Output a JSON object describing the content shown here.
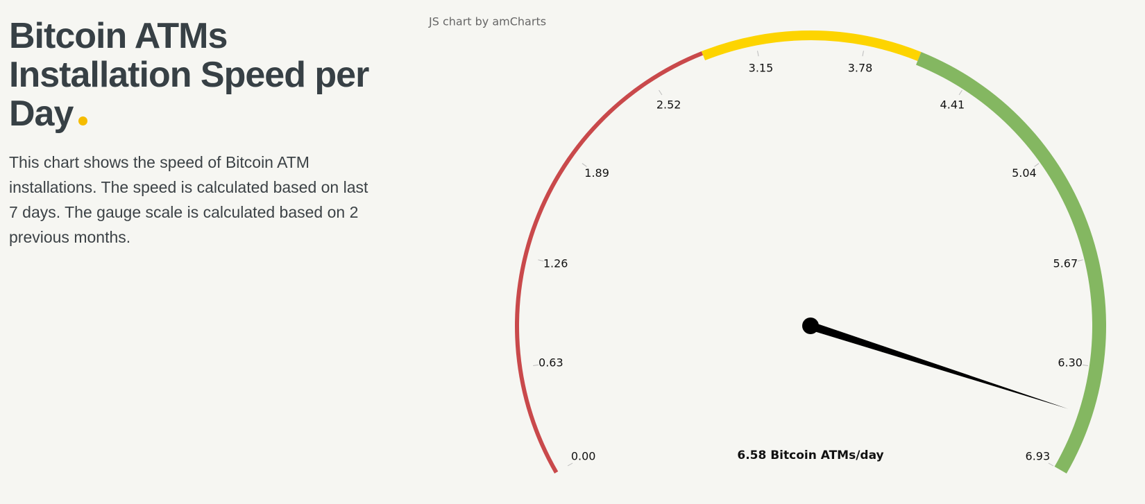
{
  "header": {
    "title": "Bitcoin ATMs Installation Speed per Day",
    "description": "This chart shows the speed of Bitcoin ATM installations. The speed is calculated based on last 7 days. The gauge scale is calculated based on 2 previous months."
  },
  "credit": "JS chart by amCharts",
  "chart_data": {
    "type": "gauge",
    "values": [
      6.58
    ],
    "value_labels": [
      "6.58 Bitcoin ATMs/day"
    ],
    "ylim": [
      0,
      6.93
    ],
    "yticks": [
      {
        "value": 0,
        "label": "0.00"
      },
      0.63,
      1.26,
      1.89,
      2.52,
      3.15,
      3.78,
      4.41,
      5.04,
      5.67,
      {
        "value": 6.3,
        "label": "6.30"
      },
      6.93
    ],
    "bands": [
      {
        "start": 0,
        "end": 2.84,
        "color": "#c9494b"
      },
      {
        "start": 2.84,
        "end": 4.1,
        "color": "#fdd400"
      },
      {
        "start": 4.1,
        "end": 6.93,
        "color": "#84b761"
      }
    ],
    "needle_color": "#000000"
  }
}
